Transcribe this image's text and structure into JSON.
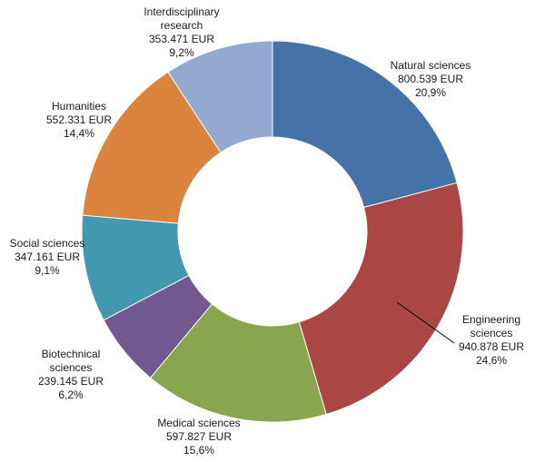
{
  "chart_data": {
    "type": "pie",
    "variant": "donut",
    "grid": false,
    "legend": "none",
    "series": [
      {
        "slices": [
          {
            "name_lines": [
              "Natural sciences"
            ],
            "value_text": "800.539 EUR",
            "value": 800539,
            "percent_text": "20,9%",
            "percent": 20.9,
            "color": "#4572A7"
          },
          {
            "name_lines": [
              "Engineering",
              "sciences"
            ],
            "value_text": "940.878 EUR",
            "value": 940878,
            "percent_text": "24,6%",
            "percent": 24.6,
            "color": "#AA4643"
          },
          {
            "name_lines": [
              "Medical sciences"
            ],
            "value_text": "597.827 EUR",
            "value": 597827,
            "percent_text": "15,6%",
            "percent": 15.6,
            "color": "#89A54E"
          },
          {
            "name_lines": [
              "Biotechnical",
              "sciences"
            ],
            "value_text": "239.145 EUR",
            "value": 239145,
            "percent_text": "6,2%",
            "percent": 6.2,
            "color": "#71588F"
          },
          {
            "name_lines": [
              "Social sciences"
            ],
            "value_text": "347.161 EUR",
            "value": 347161,
            "percent_text": "9,1%",
            "percent": 9.1,
            "color": "#4198AF"
          },
          {
            "name_lines": [
              "Humanities"
            ],
            "value_text": "552.331 EUR",
            "value": 552331,
            "percent_text": "14,4%",
            "percent": 14.4,
            "color": "#DB843D"
          },
          {
            "name_lines": [
              "Interdisciplinary",
              "research"
            ],
            "value_text": "353.471 EUR",
            "value": 353471,
            "percent_text": "9,2%",
            "percent": 9.2,
            "color": "#93A9CF"
          }
        ]
      }
    ]
  }
}
